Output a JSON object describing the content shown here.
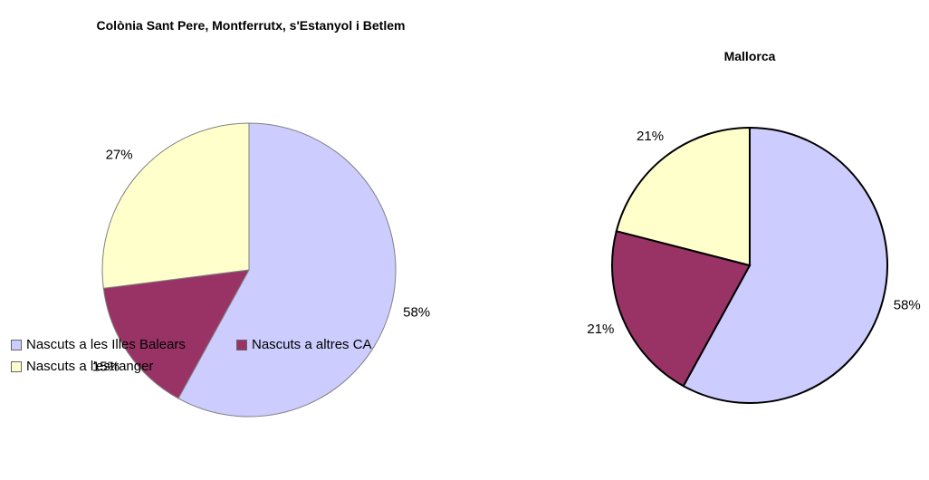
{
  "chart_data": [
    {
      "type": "pie",
      "title": "Colònia Sant Pere, Montferrutx, s'Estanyol i Betlem",
      "categories": [
        "Nascuts a les Illes Balears",
        "Nascuts a altres CA",
        "Nascuts a l'estranger"
      ],
      "values": [
        58,
        15,
        27
      ],
      "value_labels": [
        "58%",
        "15%",
        "27%"
      ],
      "colors": [
        "#ccccff",
        "#993366",
        "#ffffcc"
      ],
      "legend": "bottom"
    },
    {
      "type": "pie",
      "title": "Mallorca",
      "values": [
        58,
        21,
        21
      ],
      "value_labels": [
        "58%",
        "21%",
        "21%"
      ],
      "colors": [
        "#ccccff",
        "#993366",
        "#ffffcc"
      ]
    }
  ]
}
